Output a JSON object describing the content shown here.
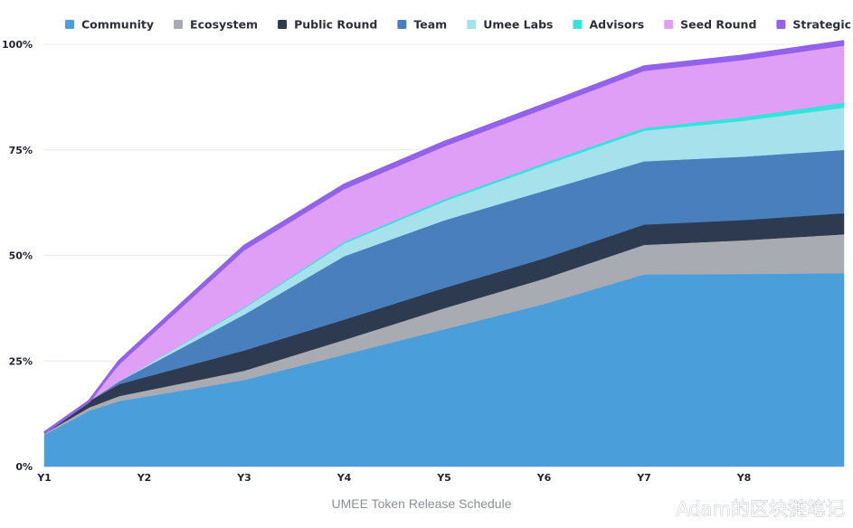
{
  "chart_data": {
    "type": "area",
    "stacked": true,
    "categories": [
      "Y1",
      "Y2",
      "Y3",
      "Y4",
      "Y5",
      "Y6",
      "Y7",
      "Y8"
    ],
    "y_ticks": [
      "0%",
      "25%",
      "50%",
      "75%",
      "100%"
    ],
    "ylim": [
      0,
      100
    ],
    "grid": true,
    "legend_position": "top",
    "x": [
      1,
      1.45,
      1.75,
      3,
      4,
      5,
      6,
      7,
      8,
      9
    ],
    "series": [
      {
        "name": "Community",
        "color": "#4a9fdb",
        "values": [
          7.5,
          13.2,
          15.5,
          20.5,
          26.5,
          32.5,
          38.5,
          45.5,
          45.6,
          45.8
        ]
      },
      {
        "name": "Ecosystem",
        "color": "#a8acb2",
        "values": [
          0.3,
          0.8,
          1.2,
          2.2,
          3.5,
          5,
          6,
          7,
          8,
          9.2
        ]
      },
      {
        "name": "Public Round",
        "color": "#2e3a4f",
        "values": [
          0.2,
          1.5,
          2.8,
          4.8,
          4.8,
          4.8,
          4.8,
          4.8,
          4.8,
          5
        ]
      },
      {
        "name": "Team",
        "color": "#4a7fbe",
        "values": [
          0,
          0,
          0.7,
          8.5,
          15,
          16,
          16,
          15,
          15,
          15
        ]
      },
      {
        "name": "Umee Labs",
        "color": "#a6e1ec",
        "values": [
          0,
          0,
          0,
          1.5,
          3,
          4.5,
          6,
          7.2,
          8.5,
          10
        ]
      },
      {
        "name": "Advisors",
        "color": "#35e3dc",
        "values": [
          0,
          0,
          0,
          0.2,
          0.4,
          0.5,
          0.6,
          0.7,
          0.9,
          1.2
        ]
      },
      {
        "name": "Seed Round",
        "color": "#e09ff7",
        "values": [
          0,
          0,
          4,
          13.5,
          12.5,
          12.5,
          12.8,
          13.5,
          13.5,
          13.5
        ]
      },
      {
        "name": "Strategic Round",
        "color": "#9262ea",
        "values": [
          0,
          0,
          0.8,
          1,
          1,
          1,
          1,
          1,
          1,
          1
        ]
      }
    ]
  },
  "caption": "UMEE Token Release Schedule",
  "watermark": "Adam的区块链笔记"
}
